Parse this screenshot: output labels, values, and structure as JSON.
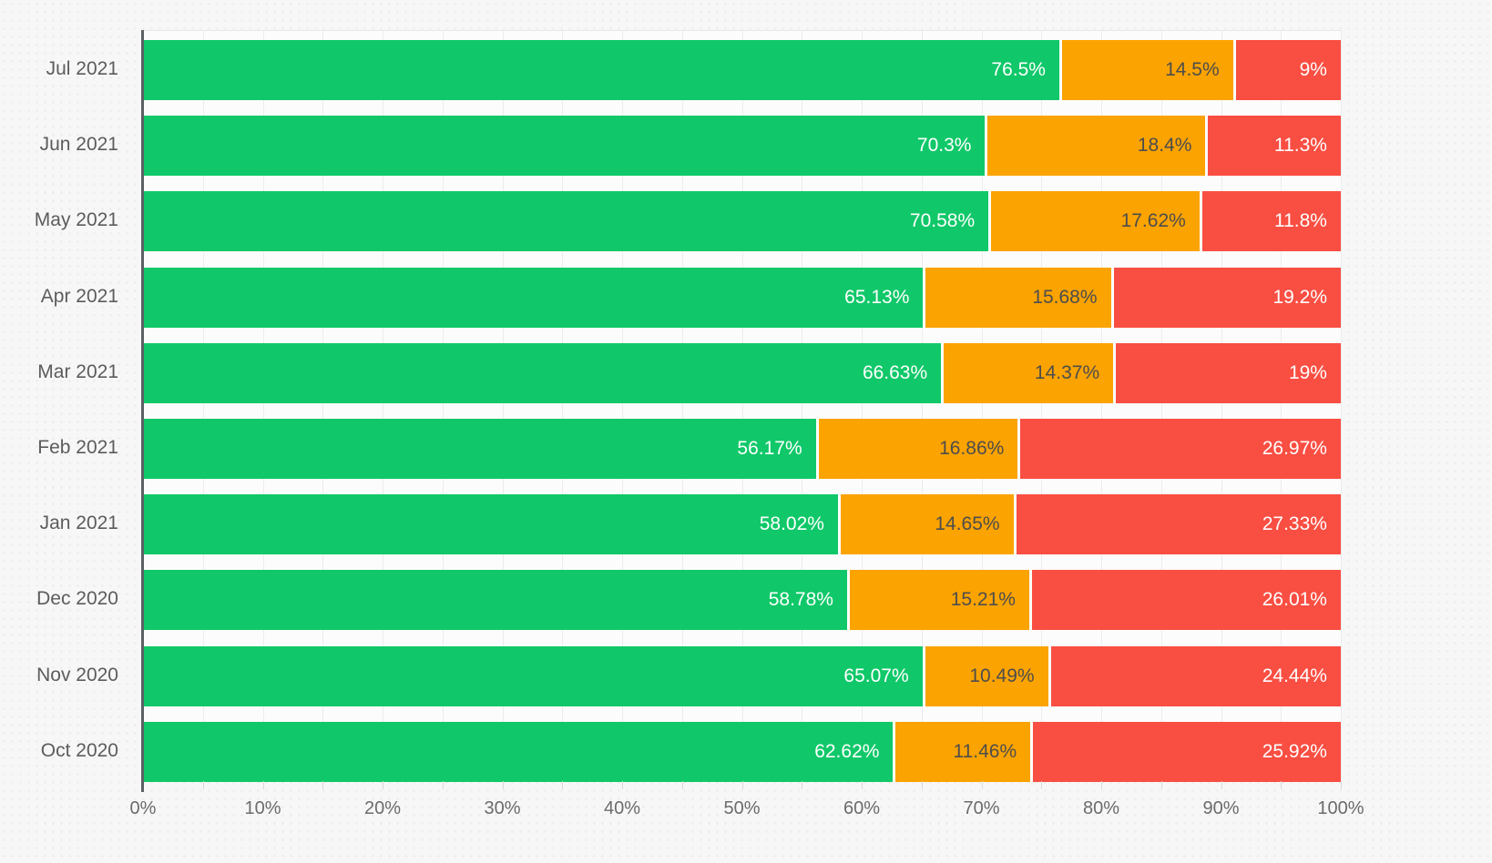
{
  "chart_data": {
    "type": "bar",
    "orientation": "horizontal",
    "stacked": true,
    "title": "",
    "xlabel": "",
    "ylabel": "",
    "categories": [
      "Jul 2021",
      "Jun 2021",
      "May 2021",
      "Apr 2021",
      "Mar 2021",
      "Feb 2021",
      "Jan 2021",
      "Dec 2020",
      "Nov 2020",
      "Oct 2020"
    ],
    "series": [
      {
        "name": "green",
        "color": "#10c869",
        "label_color": "#ffffff",
        "values": [
          76.5,
          70.3,
          70.58,
          65.13,
          66.63,
          56.17,
          58.02,
          58.78,
          65.07,
          62.62
        ],
        "labels": [
          "76.5%",
          "70.3%",
          "70.58%",
          "65.13%",
          "66.63%",
          "56.17%",
          "58.02%",
          "58.78%",
          "65.07%",
          "62.62%"
        ]
      },
      {
        "name": "orange",
        "color": "#fba300",
        "label_color": "#4d4d4d",
        "values": [
          14.5,
          18.4,
          17.62,
          15.68,
          14.37,
          16.86,
          14.65,
          15.21,
          10.49,
          11.46
        ],
        "labels": [
          "14.5%",
          "18.4%",
          "17.62%",
          "15.68%",
          "14.37%",
          "16.86%",
          "14.65%",
          "15.21%",
          "10.49%",
          "11.46%"
        ]
      },
      {
        "name": "red",
        "color": "#f94e42",
        "label_color": "#ffffff",
        "values": [
          9,
          11.3,
          11.8,
          19.2,
          19,
          26.97,
          27.33,
          26.01,
          24.44,
          25.92
        ],
        "labels": [
          "9%",
          "11.3%",
          "11.8%",
          "19.2%",
          "19%",
          "26.97%",
          "27.33%",
          "26.01%",
          "24.44%",
          "25.92%"
        ]
      }
    ],
    "x_axis": {
      "min": 0,
      "max": 100,
      "tick_labels": [
        "0%",
        "10%",
        "20%",
        "30%",
        "40%",
        "50%",
        "60%",
        "70%",
        "80%",
        "90%",
        "100%"
      ],
      "major_tick_step": 10,
      "minor_tick_step": 5
    },
    "grid": true,
    "legend": false
  }
}
